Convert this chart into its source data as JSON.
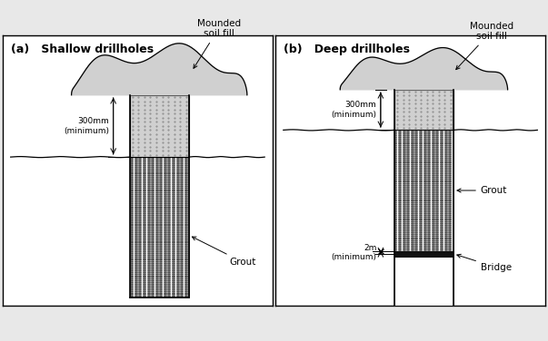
{
  "fig_width": 6.03,
  "fig_height": 3.76,
  "bg_color": "#e8e8e8",
  "panel_bg": "#ffffff",
  "title_a": "(a)   Shallow drillholes",
  "title_b": "(b)   Deep drillholes",
  "label_mound_a": "Mounded\nsoil fill",
  "label_mound_b": "Mounded\nsoil fill",
  "label_grout_a": "Grout",
  "label_grout_b": "Grout",
  "label_bridge": "Bridge",
  "label_300_a": "300mm\n(minimum)",
  "label_300_b": "300mm\n(minimum)",
  "label_2m": "2m\n(minimum)",
  "dot_fill_color": "#d0d0d0",
  "bridge_color": "#111111"
}
